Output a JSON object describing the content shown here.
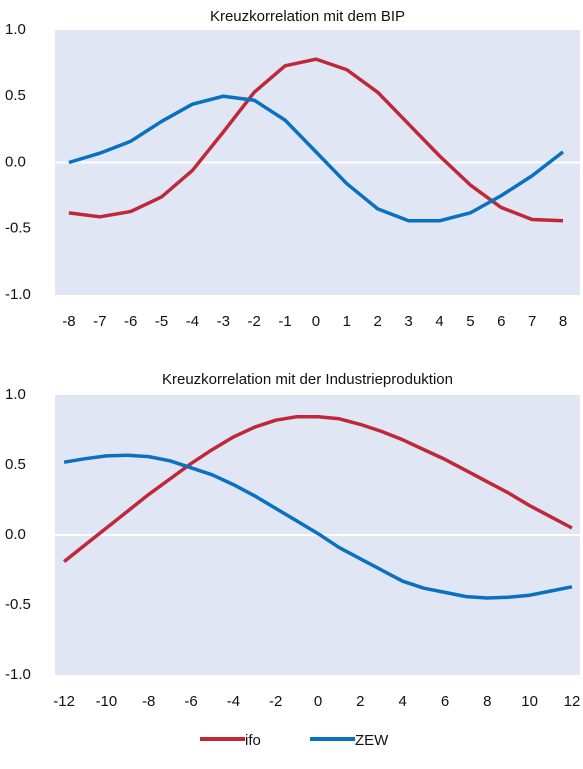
{
  "chart_data": [
    {
      "type": "line",
      "title": "Kreuzkorrelation mit dem BIP",
      "x": [
        -8,
        -7,
        -6,
        -5,
        -4,
        -3,
        -2,
        -1,
        0,
        1,
        2,
        3,
        4,
        5,
        6,
        7,
        8
      ],
      "series": [
        {
          "name": "ifo",
          "color": "#c0283a",
          "values": [
            -0.38,
            -0.41,
            -0.37,
            -0.26,
            -0.06,
            0.23,
            0.53,
            0.73,
            0.78,
            0.7,
            0.53,
            0.29,
            0.05,
            -0.17,
            -0.34,
            -0.43,
            -0.44
          ]
        },
        {
          "name": "ZEW",
          "color": "#0a70c0",
          "values": [
            0.0,
            0.07,
            0.16,
            0.31,
            0.44,
            0.5,
            0.47,
            0.32,
            0.08,
            -0.16,
            -0.35,
            -0.44,
            -0.44,
            -0.38,
            -0.25,
            -0.1,
            0.08
          ]
        }
      ],
      "xlim": [
        -8.45,
        8.55
      ],
      "xticks": [
        -8,
        -7,
        -6,
        -5,
        -4,
        -3,
        -2,
        -1,
        0,
        1,
        2,
        3,
        4,
        5,
        6,
        7,
        8
      ],
      "ylim": [
        -1,
        1
      ],
      "yticks": [
        {
          "value": 1,
          "label": "1.0"
        },
        0.5,
        {
          "value": 0,
          "label": "0.0"
        },
        -0.5,
        {
          "value": -1,
          "label": "-1.0"
        }
      ]
    },
    {
      "type": "line",
      "title": "Kreuzkorrelation mit der Industrieproduktion",
      "x": [
        -12,
        -11,
        -10,
        -9,
        -8,
        -7,
        -6,
        -5,
        -4,
        -3,
        -2,
        -1,
        0,
        1,
        2,
        3,
        4,
        5,
        6,
        7,
        8,
        9,
        10,
        11,
        12
      ],
      "series": [
        {
          "name": "ifo",
          "color": "#c0283a",
          "values": [
            -0.19,
            -0.07,
            0.05,
            0.17,
            0.29,
            0.4,
            0.51,
            0.61,
            0.7,
            0.77,
            0.82,
            0.845,
            0.845,
            0.83,
            0.79,
            0.74,
            0.68,
            0.61,
            0.54,
            0.46,
            0.38,
            0.3,
            0.21,
            0.13,
            0.05
          ]
        },
        {
          "name": "ZEW",
          "color": "#0a70c0",
          "values": [
            0.52,
            0.545,
            0.565,
            0.57,
            0.56,
            0.53,
            0.48,
            0.43,
            0.36,
            0.28,
            0.19,
            0.1,
            0.01,
            -0.09,
            -0.17,
            -0.25,
            -0.33,
            -0.38,
            -0.41,
            -0.44,
            -0.45,
            -0.445,
            -0.43,
            -0.4,
            -0.37
          ]
        }
      ],
      "xlim": [
        -12.43,
        12.38
      ],
      "xticks": [
        -12,
        -10,
        -8,
        -6,
        -4,
        -2,
        0,
        2,
        4,
        6,
        8,
        10,
        12
      ],
      "ylim": [
        -1,
        1
      ],
      "yticks": [
        {
          "value": 1,
          "label": "1.0"
        },
        0.5,
        {
          "value": 0,
          "label": "0.0"
        },
        -0.5,
        {
          "value": -1,
          "label": "-1.0"
        }
      ]
    }
  ]
}
